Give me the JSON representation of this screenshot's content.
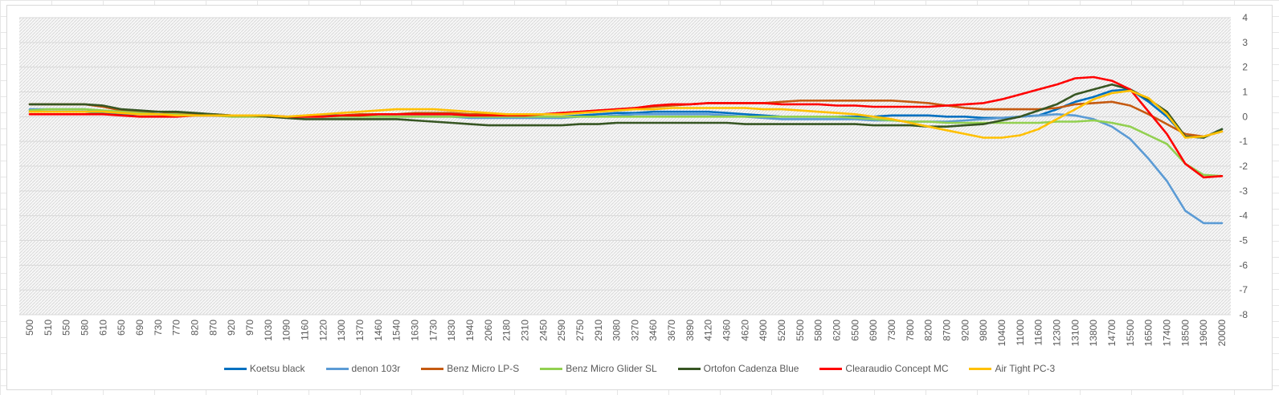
{
  "chart_data": {
    "type": "line",
    "title": "",
    "xlabel": "",
    "ylabel": "",
    "ylim": [
      -8,
      4
    ],
    "yticks": [
      4,
      3,
      2,
      1,
      0,
      -1,
      -2,
      -3,
      -4,
      -5,
      -6,
      -7,
      -8
    ],
    "grid": true,
    "legend_position": "bottom",
    "categories": [
      "500",
      "510",
      "550",
      "580",
      "610",
      "650",
      "690",
      "730",
      "770",
      "820",
      "870",
      "920",
      "970",
      "1030",
      "1090",
      "1160",
      "1220",
      "1300",
      "1370",
      "1460",
      "1540",
      "1630",
      "1730",
      "1830",
      "1940",
      "2060",
      "2180",
      "2310",
      "2450",
      "2590",
      "2750",
      "2910",
      "3080",
      "3270",
      "3460",
      "3670",
      "3890",
      "4120",
      "4360",
      "4620",
      "4900",
      "5200",
      "5500",
      "5800",
      "6200",
      "6500",
      "6900",
      "7300",
      "7800",
      "8200",
      "8700",
      "9200",
      "9800",
      "10400",
      "11000",
      "11600",
      "12300",
      "13100",
      "13800",
      "14700",
      "15500",
      "16500",
      "17400",
      "18500",
      "19600",
      "20000"
    ],
    "series": [
      {
        "name": "Koetsu black",
        "color": "#0070c0",
        "values": [
          0.2,
          0.2,
          0.2,
          0.2,
          0.15,
          0.1,
          0.1,
          0.1,
          0.1,
          0.1,
          0.05,
          0.05,
          0.05,
          0,
          0,
          0,
          0.05,
          0.05,
          0.05,
          0.1,
          0.1,
          0.1,
          0.1,
          0.1,
          0.05,
          0,
          0,
          0,
          0,
          0,
          0.05,
          0.1,
          0.15,
          0.15,
          0.2,
          0.2,
          0.2,
          0.2,
          0.15,
          0.1,
          0.05,
          0,
          0,
          0,
          0,
          0,
          0,
          0.05,
          0.05,
          0.05,
          0,
          0,
          -0.05,
          -0.05,
          0,
          0.05,
          0.3,
          0.6,
          0.8,
          1.05,
          1.1,
          0.6,
          0.0,
          -0.8,
          -0.85,
          -0.5
        ]
      },
      {
        "name": "denon 103r",
        "color": "#5b9bd5",
        "values": [
          0.3,
          0.3,
          0.3,
          0.3,
          0.2,
          0.15,
          0.1,
          0.1,
          0.1,
          0.1,
          0.05,
          0.05,
          0.05,
          0,
          0,
          0,
          0,
          0,
          0,
          0,
          0,
          0,
          0,
          0,
          -0.05,
          -0.05,
          -0.05,
          -0.05,
          -0.05,
          -0.05,
          0,
          0,
          0.05,
          0.1,
          0.1,
          0.1,
          0.1,
          0.1,
          0.05,
          0,
          -0.05,
          -0.1,
          -0.1,
          -0.1,
          -0.1,
          -0.1,
          -0.15,
          -0.15,
          -0.2,
          -0.2,
          -0.2,
          -0.15,
          -0.1,
          -0.05,
          0,
          0.05,
          0.1,
          0.05,
          -0.1,
          -0.4,
          -0.9,
          -1.7,
          -2.6,
          -3.8,
          -4.3,
          -4.3
        ]
      },
      {
        "name": "Benz Micro LP-S",
        "color": "#c55a11",
        "values": [
          0.5,
          0.5,
          0.5,
          0.5,
          0.4,
          0.25,
          0.2,
          0.2,
          0.15,
          0.1,
          0.1,
          0.05,
          0.05,
          0,
          0,
          0,
          0,
          0.05,
          0.1,
          0.1,
          0.1,
          0.15,
          0.15,
          0.15,
          0.1,
          0.1,
          0.1,
          0.1,
          0.1,
          0.15,
          0.2,
          0.25,
          0.3,
          0.35,
          0.4,
          0.45,
          0.5,
          0.55,
          0.55,
          0.55,
          0.55,
          0.6,
          0.65,
          0.65,
          0.65,
          0.65,
          0.65,
          0.65,
          0.6,
          0.55,
          0.45,
          0.35,
          0.3,
          0.3,
          0.3,
          0.3,
          0.35,
          0.5,
          0.55,
          0.6,
          0.45,
          0.1,
          -0.3,
          -0.7,
          -0.8,
          -0.6
        ]
      },
      {
        "name": "Benz Micro Glider SL",
        "color": "#92d050",
        "values": [
          0.25,
          0.3,
          0.3,
          0.3,
          0.25,
          0.2,
          0.15,
          0.1,
          0.1,
          0.05,
          0.05,
          0,
          0,
          0,
          0,
          0,
          0,
          0,
          0,
          0,
          0,
          0,
          0,
          0,
          0,
          0,
          0,
          0,
          0,
          0,
          0,
          0,
          0,
          0,
          0,
          0,
          0,
          0,
          0,
          0,
          0,
          0,
          0,
          0,
          0,
          -0.05,
          -0.1,
          -0.15,
          -0.2,
          -0.2,
          -0.25,
          -0.25,
          -0.25,
          -0.25,
          -0.25,
          -0.25,
          -0.2,
          -0.2,
          -0.15,
          -0.25,
          -0.4,
          -0.75,
          -1.1,
          -1.9,
          -2.35,
          -2.4
        ]
      },
      {
        "name": "Ortofon Cadenza Blue",
        "color": "#375623",
        "values": [
          0.5,
          0.5,
          0.5,
          0.5,
          0.45,
          0.3,
          0.25,
          0.2,
          0.2,
          0.15,
          0.1,
          0.05,
          0.05,
          0,
          -0.05,
          -0.1,
          -0.1,
          -0.1,
          -0.1,
          -0.1,
          -0.1,
          -0.15,
          -0.2,
          -0.25,
          -0.3,
          -0.35,
          -0.35,
          -0.35,
          -0.35,
          -0.35,
          -0.3,
          -0.3,
          -0.25,
          -0.25,
          -0.25,
          -0.25,
          -0.25,
          -0.25,
          -0.25,
          -0.3,
          -0.3,
          -0.3,
          -0.3,
          -0.3,
          -0.3,
          -0.3,
          -0.35,
          -0.35,
          -0.35,
          -0.4,
          -0.4,
          -0.35,
          -0.3,
          -0.15,
          0,
          0.25,
          0.5,
          0.9,
          1.1,
          1.3,
          1.1,
          0.7,
          0.2,
          -0.8,
          -0.85,
          -0.5
        ]
      },
      {
        "name": "Clearaudio Concept MC",
        "color": "#ff0000",
        "values": [
          0.1,
          0.1,
          0.1,
          0.1,
          0.1,
          0.05,
          0,
          0,
          0,
          0.05,
          0.05,
          0.05,
          0.05,
          0.05,
          0,
          0,
          0,
          0.05,
          0.05,
          0.1,
          0.1,
          0.1,
          0.1,
          0.1,
          0.05,
          0.05,
          0.05,
          0.05,
          0.1,
          0.15,
          0.2,
          0.25,
          0.3,
          0.35,
          0.45,
          0.5,
          0.5,
          0.55,
          0.55,
          0.55,
          0.55,
          0.5,
          0.5,
          0.5,
          0.45,
          0.45,
          0.4,
          0.4,
          0.4,
          0.4,
          0.45,
          0.5,
          0.55,
          0.7,
          0.9,
          1.1,
          1.3,
          1.55,
          1.6,
          1.45,
          1.1,
          0.2,
          -0.7,
          -1.9,
          -2.45,
          -2.4
        ]
      },
      {
        "name": "Air Tight PC-3",
        "color": "#ffc000",
        "values": [
          0.2,
          0.2,
          0.2,
          0.2,
          0.2,
          0.15,
          0.1,
          0.1,
          0.05,
          0.05,
          0.05,
          0.05,
          0.05,
          0.05,
          0,
          0.05,
          0.1,
          0.15,
          0.2,
          0.25,
          0.3,
          0.3,
          0.3,
          0.25,
          0.2,
          0.15,
          0.1,
          0.1,
          0.1,
          0.1,
          0.15,
          0.2,
          0.25,
          0.3,
          0.3,
          0.35,
          0.35,
          0.35,
          0.35,
          0.35,
          0.3,
          0.3,
          0.25,
          0.2,
          0.15,
          0.1,
          0,
          -0.1,
          -0.25,
          -0.4,
          -0.55,
          -0.7,
          -0.85,
          -0.85,
          -0.75,
          -0.5,
          -0.1,
          0.3,
          0.7,
          0.95,
          1.05,
          0.75,
          0.1,
          -0.85,
          -0.8,
          -0.6
        ]
      }
    ]
  }
}
